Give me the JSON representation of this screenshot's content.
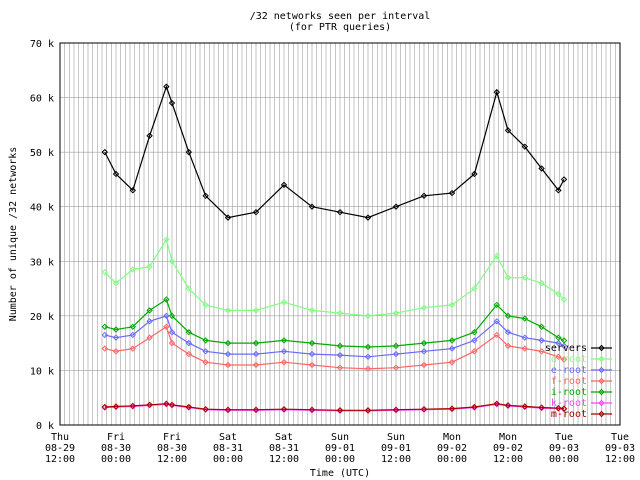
{
  "chart_data": {
    "type": "line",
    "title": "/32 networks seen per interval",
    "subtitle": "(for PTR queries)",
    "xlabel": "Time (UTC)",
    "ylabel": "Number of unique /32 networks",
    "ylim": [
      0,
      70000
    ],
    "yticks": [
      {
        "value": 0,
        "label": "0 k"
      },
      {
        "value": 10000,
        "label": "10 k"
      },
      {
        "value": 20000,
        "label": "20 k"
      },
      {
        "value": 30000,
        "label": "30 k"
      },
      {
        "value": 40000,
        "label": "40 k"
      },
      {
        "value": 50000,
        "label": "50 k"
      },
      {
        "value": 60000,
        "label": "60 k"
      },
      {
        "value": 70000,
        "label": "70 k"
      }
    ],
    "xlim": [
      0,
      10
    ],
    "xticks": [
      {
        "day": "Thu",
        "date": "08-29",
        "time": "12:00"
      },
      {
        "day": "Fri",
        "date": "08-30",
        "time": "00:00"
      },
      {
        "day": "Fri",
        "date": "08-30",
        "time": "12:00"
      },
      {
        "day": "Sat",
        "date": "08-31",
        "time": "00:00"
      },
      {
        "day": "Sat",
        "date": "08-31",
        "time": "12:00"
      },
      {
        "day": "Sun",
        "date": "09-01",
        "time": "00:00"
      },
      {
        "day": "Sun",
        "date": "09-01",
        "time": "12:00"
      },
      {
        "day": "Mon",
        "date": "09-02",
        "time": "00:00"
      },
      {
        "day": "Mon",
        "date": "09-02",
        "time": "12:00"
      },
      {
        "day": "Tue",
        "date": "09-03",
        "time": "00:00"
      },
      {
        "day": "Tue",
        "date": "09-03",
        "time": "12:00"
      }
    ],
    "grid": true,
    "legend_position": "bottom-right",
    "x": [
      0.8,
      1.0,
      1.3,
      1.6,
      1.9,
      2.0,
      2.3,
      2.6,
      3.0,
      3.5,
      4.0,
      4.5,
      5.0,
      5.5,
      6.0,
      6.5,
      7.0,
      7.4,
      7.8,
      8.0,
      8.3,
      8.6,
      8.9,
      9.0
    ],
    "series": [
      {
        "name": "servers",
        "color": "#000000",
        "values": [
          50000,
          46000,
          43000,
          53000,
          62000,
          59000,
          50000,
          42000,
          38000,
          39000,
          44000,
          40000,
          39000,
          38000,
          40000,
          42000,
          42500,
          46000,
          61000,
          54000,
          51000,
          47000,
          43000,
          45000
        ]
      },
      {
        "name": "d-root",
        "color": "#80ff80",
        "values": [
          28000,
          26000,
          28500,
          29000,
          34000,
          30000,
          25000,
          22000,
          21000,
          21000,
          22500,
          21000,
          20500,
          20000,
          20500,
          21500,
          22000,
          25000,
          31000,
          27000,
          27000,
          26000,
          24000,
          23000
        ]
      },
      {
        "name": "e-root",
        "color": "#6a6aff",
        "values": [
          16500,
          16000,
          16500,
          19000,
          20000,
          17000,
          15000,
          13500,
          13000,
          13000,
          13500,
          13000,
          12800,
          12500,
          13000,
          13500,
          14000,
          15500,
          19000,
          17000,
          16000,
          15500,
          15000,
          14500
        ]
      },
      {
        "name": "f-root",
        "color": "#ff6464",
        "values": [
          14000,
          13500,
          14000,
          16000,
          18000,
          15000,
          13000,
          11500,
          11000,
          11000,
          11500,
          11000,
          10500,
          10300,
          10500,
          11000,
          11500,
          13500,
          16500,
          14500,
          14000,
          13500,
          12500,
          12000
        ]
      },
      {
        "name": "i-root",
        "color": "#00aa00",
        "values": [
          18000,
          17500,
          18000,
          21000,
          23000,
          20000,
          17000,
          15500,
          15000,
          15000,
          15500,
          15000,
          14500,
          14300,
          14500,
          15000,
          15500,
          17000,
          22000,
          20000,
          19500,
          18000,
          16000,
          15500
        ]
      },
      {
        "name": "k-root",
        "color": "#ff40ff",
        "values": [
          3200,
          3300,
          3400,
          3600,
          3800,
          3600,
          3200,
          2800,
          2700,
          2700,
          2800,
          2700,
          2600,
          2600,
          2700,
          2800,
          2900,
          3200,
          3800,
          3500,
          3300,
          3100,
          3000,
          2900
        ]
      },
      {
        "name": "m-root",
        "color": "#aa0000",
        "values": [
          3300,
          3400,
          3500,
          3700,
          3900,
          3700,
          3300,
          2900,
          2800,
          2800,
          2900,
          2800,
          2700,
          2700,
          2800,
          2900,
          3000,
          3300,
          3900,
          3600,
          3400,
          3200,
          3100,
          3000
        ]
      }
    ]
  }
}
